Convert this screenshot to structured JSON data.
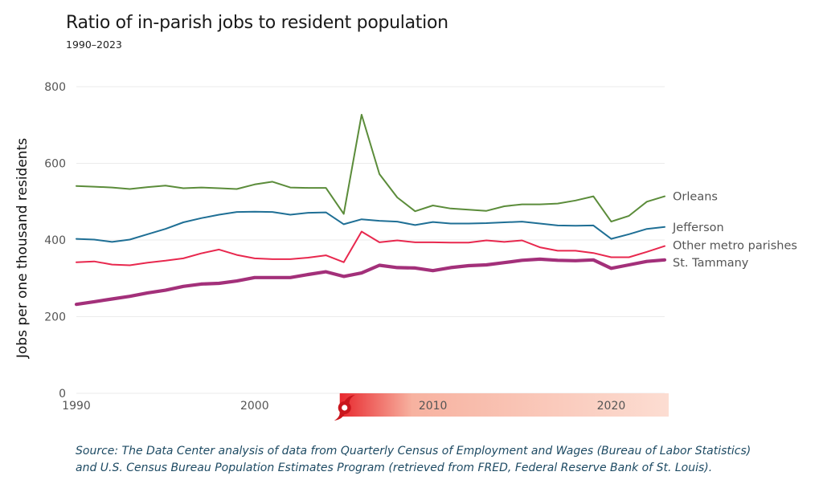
{
  "chart_data": {
    "type": "line",
    "title": "Ratio of in-parish jobs to resident population",
    "subtitle": "1990–2023",
    "xlabel": "",
    "ylabel": "Jobs per one thousand residents",
    "xlim": [
      1990,
      2023
    ],
    "ylim": [
      0,
      800
    ],
    "yticks": [
      0,
      200,
      400,
      600,
      800
    ],
    "ytick_labels": [
      "0",
      "200",
      "400",
      "600",
      "800"
    ],
    "xticks": [
      1990,
      2000,
      2010,
      2020
    ],
    "xtick_labels": [
      "1990",
      "2000",
      "2010",
      "2020"
    ],
    "grid": "horizontal",
    "legend": "direct labels at right end of lines",
    "x": [
      1990,
      1991,
      1992,
      1993,
      1994,
      1995,
      1996,
      1997,
      1998,
      1999,
      2000,
      2001,
      2002,
      2003,
      2004,
      2005,
      2006,
      2007,
      2008,
      2009,
      2010,
      2011,
      2012,
      2013,
      2014,
      2015,
      2016,
      2017,
      2018,
      2019,
      2020,
      2021,
      2022,
      2023
    ],
    "series": [
      {
        "name": "Orleans",
        "color": "#5b8c3a",
        "width": "normal",
        "values": [
          541,
          539,
          537,
          533,
          538,
          542,
          535,
          537,
          535,
          533,
          545,
          552,
          537,
          536,
          536,
          468,
          727,
          572,
          511,
          475,
          490,
          482,
          479,
          476,
          488,
          493,
          493,
          495,
          503,
          514,
          448,
          463,
          500,
          514
        ]
      },
      {
        "name": "Jefferson",
        "color": "#1f6f95",
        "width": "normal",
        "values": [
          403,
          401,
          395,
          401,
          415,
          429,
          446,
          457,
          466,
          473,
          474,
          473,
          466,
          471,
          472,
          441,
          454,
          450,
          448,
          439,
          447,
          443,
          443,
          444,
          446,
          448,
          443,
          438,
          437,
          438,
          403,
          415,
          429,
          434
        ]
      },
      {
        "name": "Other metro parishes",
        "color": "#e8284e",
        "width": "normal",
        "values": [
          342,
          344,
          336,
          334,
          341,
          346,
          352,
          365,
          375,
          361,
          352,
          350,
          350,
          354,
          360,
          342,
          422,
          394,
          399,
          394,
          394,
          393,
          393,
          399,
          395,
          399,
          381,
          372,
          372,
          366,
          355,
          355,
          369,
          384
        ]
      },
      {
        "name": "St. Tammany",
        "color": "#a3307a",
        "width": "thick",
        "values": [
          232,
          239,
          246,
          253,
          262,
          269,
          279,
          285,
          287,
          293,
          302,
          302,
          302,
          310,
          317,
          305,
          314,
          334,
          328,
          327,
          320,
          328,
          333,
          335,
          341,
          347,
          350,
          347,
          346,
          348,
          326,
          335,
          344,
          348
        ]
      }
    ],
    "annotations": [
      {
        "type": "post-hurricane-band",
        "from": 2005,
        "to": 2023,
        "icon": "hurricane-icon",
        "color_start": "#e8282e",
        "color_end": "#fcddd2"
      }
    ],
    "source": [
      "Source: The Data Center analysis of data from Quarterly Census of Employment and Wages (Bureau of Labor Statistics)",
      "and U.S. Census Bureau Population Estimates Program (retrieved from FRED, Federal Reserve Bank of St. Louis)."
    ]
  }
}
